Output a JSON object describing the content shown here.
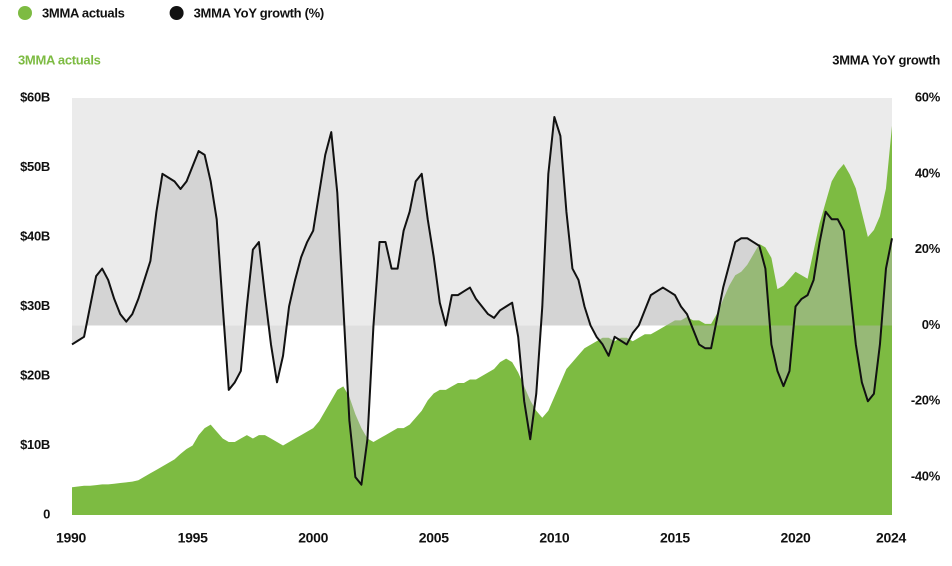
{
  "chart_data": {
    "type": "dual-axis-area-line",
    "ylabel": "3MMA actuals",
    "y2label": "3MMA YoY growth",
    "legend": "top-left",
    "x": [
      1990,
      1990.25,
      1990.5,
      1990.75,
      1991,
      1991.25,
      1991.5,
      1991.75,
      1992,
      1992.25,
      1992.5,
      1992.75,
      1993,
      1993.25,
      1993.5,
      1993.75,
      1994,
      1994.25,
      1994.5,
      1994.75,
      1995,
      1995.25,
      1995.5,
      1995.75,
      1996,
      1996.25,
      1996.5,
      1996.75,
      1997,
      1997.25,
      1997.5,
      1997.75,
      1998,
      1998.25,
      1998.5,
      1998.75,
      1999,
      1999.25,
      1999.5,
      1999.75,
      2000,
      2000.25,
      2000.5,
      2000.75,
      2001,
      2001.25,
      2001.5,
      2001.75,
      2002,
      2002.25,
      2002.5,
      2002.75,
      2003,
      2003.25,
      2003.5,
      2003.75,
      2004,
      2004.25,
      2004.5,
      2004.75,
      2005,
      2005.25,
      2005.5,
      2005.75,
      2006,
      2006.25,
      2006.5,
      2006.75,
      2007,
      2007.25,
      2007.5,
      2007.75,
      2008,
      2008.25,
      2008.5,
      2008.75,
      2009,
      2009.25,
      2009.5,
      2009.75,
      2010,
      2010.25,
      2010.5,
      2010.75,
      2011,
      2011.25,
      2011.5,
      2011.75,
      2012,
      2012.25,
      2012.5,
      2012.75,
      2013,
      2013.25,
      2013.5,
      2013.75,
      2014,
      2014.25,
      2014.5,
      2014.75,
      2015,
      2015.25,
      2015.5,
      2015.75,
      2016,
      2016.25,
      2016.5,
      2016.75,
      2017,
      2017.25,
      2017.5,
      2017.75,
      2018,
      2018.25,
      2018.5,
      2018.75,
      2019,
      2019.25,
      2019.5,
      2019.75,
      2020,
      2020.25,
      2020.5,
      2020.75,
      2021,
      2021.25,
      2021.5,
      2021.75,
      2022,
      2022.25,
      2022.5,
      2022.75,
      2023,
      2023.25,
      2023.5,
      2023.75,
      2024
    ],
    "series": [
      {
        "name": "3MMA actuals",
        "color": "#7dbb42",
        "axis": "y",
        "values": [
          4.0,
          4.1,
          4.2,
          4.2,
          4.3,
          4.4,
          4.4,
          4.5,
          4.6,
          4.7,
          4.8,
          5.0,
          5.5,
          6.0,
          6.5,
          7.0,
          7.5,
          8.0,
          8.8,
          9.5,
          10.0,
          11.5,
          12.5,
          13.0,
          12.0,
          11.0,
          10.5,
          10.5,
          11.0,
          11.5,
          11.0,
          11.5,
          11.5,
          11.0,
          10.5,
          10.0,
          10.5,
          11.0,
          11.5,
          12.0,
          12.5,
          13.5,
          15.0,
          16.5,
          18.0,
          18.5,
          17.0,
          14.5,
          12.5,
          11.0,
          10.5,
          11.0,
          11.5,
          12.0,
          12.5,
          12.5,
          13.0,
          14.0,
          15.0,
          16.5,
          17.5,
          18.0,
          18.0,
          18.5,
          19.0,
          19.0,
          19.5,
          19.5,
          20.0,
          20.5,
          21.0,
          22.0,
          22.5,
          22.0,
          20.5,
          18.5,
          16.5,
          15.0,
          14.0,
          15.0,
          17.0,
          19.0,
          21.0,
          22.0,
          23.0,
          24.0,
          24.5,
          25.0,
          25.5,
          25.5,
          25.0,
          25.5,
          25.5,
          25.0,
          25.5,
          26.0,
          26.0,
          26.5,
          27.0,
          27.5,
          28.0,
          28.0,
          28.5,
          28.0,
          28.0,
          27.5,
          27.5,
          29.0,
          31.0,
          33.0,
          34.5,
          35.0,
          36.0,
          37.5,
          39.0,
          38.5,
          37.0,
          32.5,
          33.0,
          34.0,
          35.0,
          34.5,
          34.0,
          38.0,
          42.0,
          45.0,
          48.0,
          49.5,
          50.5,
          49.0,
          47.0,
          43.5,
          40.0,
          41.0,
          43.0,
          47.0,
          56.0
        ]
      },
      {
        "name": "3MMA YoY growth (%)",
        "color": "#111111",
        "axis": "y2",
        "values": [
          -5,
          -4,
          -3,
          5,
          13,
          15,
          12,
          7,
          3,
          1,
          3,
          7,
          12,
          17,
          30,
          40,
          39,
          38,
          36,
          38,
          42,
          46,
          45,
          38,
          28,
          5,
          -17,
          -15,
          -12,
          5,
          20,
          22,
          8,
          -5,
          -15,
          -8,
          5,
          12,
          18,
          22,
          25,
          35,
          45,
          51,
          35,
          5,
          -25,
          -40,
          -42,
          -30,
          0,
          22,
          22,
          15,
          15,
          25,
          30,
          38,
          40,
          28,
          18,
          6,
          0,
          8,
          8,
          9,
          10,
          7,
          5,
          3,
          2,
          4,
          5,
          6,
          -3,
          -20,
          -30,
          -18,
          5,
          40,
          55,
          50,
          30,
          15,
          12,
          5,
          0,
          -3,
          -5,
          -8,
          -3,
          -4,
          -5,
          -2,
          0,
          4,
          8,
          9,
          10,
          9,
          8,
          5,
          3,
          -1,
          -5,
          -6,
          -6,
          2,
          10,
          16,
          22,
          23,
          23,
          22,
          21,
          15,
          -5,
          -12,
          -16,
          -12,
          5,
          7,
          8,
          12,
          22,
          30,
          28,
          28,
          25,
          10,
          -5,
          -15,
          -20,
          -18,
          -5,
          15,
          23
        ]
      }
    ],
    "xlim": [
      1990,
      2024
    ],
    "xticks": [
      1990,
      1995,
      2000,
      2005,
      2010,
      2015,
      2020,
      2024
    ],
    "ylim": [
      0,
      60
    ],
    "yticks": [
      0,
      {
        "value": 10,
        "label": "$10B"
      },
      {
        "value": 20,
        "label": "$20B"
      },
      {
        "value": 30,
        "label": "$30B"
      },
      {
        "value": 40,
        "label": "$40B"
      },
      {
        "value": 50,
        "label": "$50B"
      },
      {
        "value": 60,
        "label": "$60B"
      }
    ],
    "y2lim": [
      -50,
      60
    ],
    "y2ticks": [
      {
        "value": -40,
        "label": "-40%"
      },
      {
        "value": -20,
        "label": "-20%"
      },
      {
        "value": 0,
        "label": "0%"
      },
      {
        "value": 20,
        "label": "20%"
      },
      {
        "value": 40,
        "label": "40%"
      },
      {
        "value": 60,
        "label": "60%"
      }
    ]
  }
}
